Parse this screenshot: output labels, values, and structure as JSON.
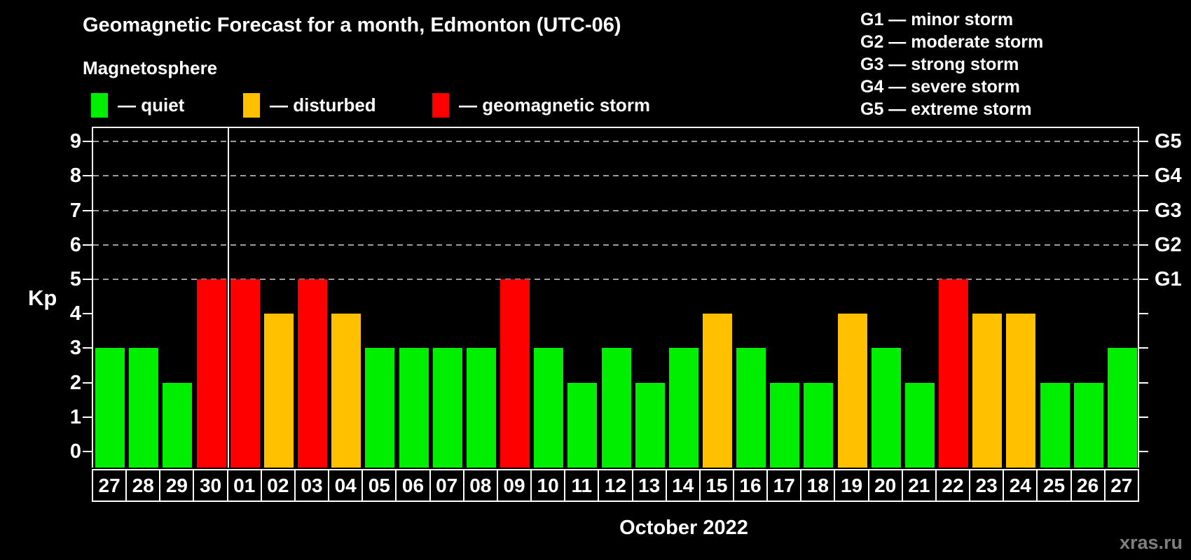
{
  "header": {
    "title": "Geomagnetic Forecast for a month, Edmonton (UTC-06)",
    "subtitle": "Magnetosphere"
  },
  "legend": {
    "items": [
      {
        "key": "quiet",
        "label": "— quiet",
        "color": "#00ee00"
      },
      {
        "key": "disturbed",
        "label": "— disturbed",
        "color": "#ffc000"
      },
      {
        "key": "storm",
        "label": "— geomagnetic storm",
        "color": "#ff0000"
      }
    ]
  },
  "storm_scale_legend": {
    "lines": [
      "G1 — minor storm",
      "G2 — moderate storm",
      "G3 — strong storm",
      "G4 — severe storm",
      "G5 — extreme storm"
    ]
  },
  "chart_data": {
    "type": "bar",
    "title": "Geomagnetic Forecast for a month, Edmonton (UTC-06)",
    "subtitle": "Magnetosphere",
    "ylabel": "Kp",
    "xlabel": "October 2022",
    "categories": [
      "27",
      "28",
      "29",
      "30",
      "01",
      "02",
      "03",
      "04",
      "05",
      "06",
      "07",
      "08",
      "09",
      "10",
      "11",
      "12",
      "13",
      "14",
      "15",
      "16",
      "17",
      "18",
      "19",
      "20",
      "21",
      "22",
      "23",
      "24",
      "25",
      "26",
      "27"
    ],
    "values": [
      3,
      3,
      2,
      5,
      5,
      4,
      5,
      4,
      3,
      3,
      3,
      3,
      5,
      3,
      2,
      3,
      2,
      3,
      4,
      3,
      2,
      2,
      4,
      3,
      2,
      5,
      4,
      4,
      2,
      2,
      3
    ],
    "levels": [
      "quiet",
      "quiet",
      "quiet",
      "storm",
      "storm",
      "disturbed",
      "storm",
      "disturbed",
      "quiet",
      "quiet",
      "quiet",
      "quiet",
      "storm",
      "quiet",
      "quiet",
      "quiet",
      "quiet",
      "quiet",
      "disturbed",
      "quiet",
      "quiet",
      "quiet",
      "disturbed",
      "quiet",
      "quiet",
      "storm",
      "disturbed",
      "disturbed",
      "quiet",
      "quiet",
      "quiet"
    ],
    "ylim": [
      0,
      9
    ],
    "yticks_left": [
      0,
      1,
      2,
      3,
      4,
      5,
      6,
      7,
      8,
      9
    ],
    "yticks_right": [
      {
        "kp": 5,
        "label": "G1"
      },
      {
        "kp": 6,
        "label": "G2"
      },
      {
        "kp": 7,
        "label": "G3"
      },
      {
        "kp": 8,
        "label": "G4"
      },
      {
        "kp": 9,
        "label": "G5"
      }
    ],
    "gridlines_at": [
      5,
      6,
      7,
      8,
      9
    ],
    "grid_style": "dashed gray, horizontal, only at storm levels",
    "month_separator_index": 4,
    "legend_position": "top-left"
  },
  "footer": {
    "caption": "October 2022",
    "watermark": "xras.ru"
  }
}
